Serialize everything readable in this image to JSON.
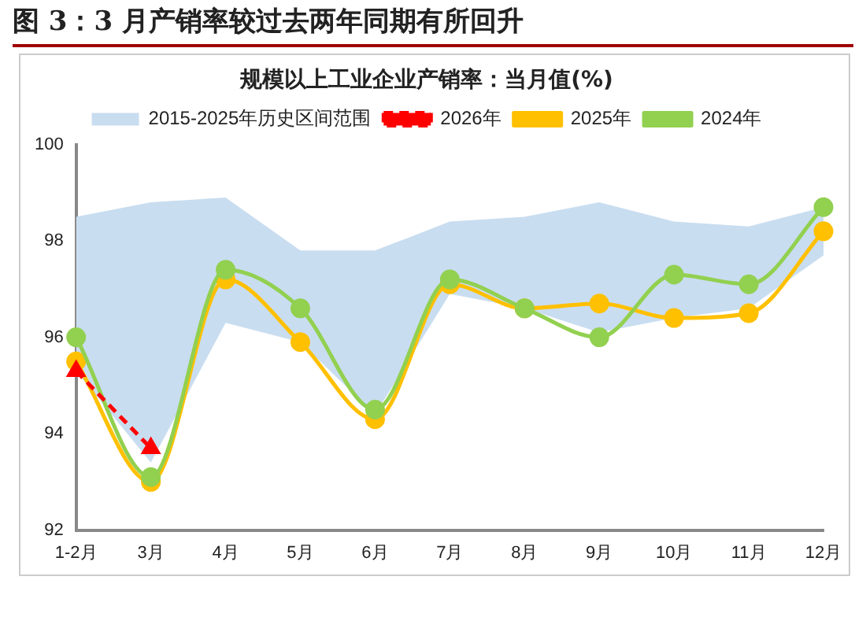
{
  "chart_data": {
    "type": "line",
    "title": "图 3：3 月产销率较过去两年同期有所回升",
    "subtitle": "规模以上工业企业产销率：当月值(%)",
    "categories": [
      "1-2月",
      "3月",
      "4月",
      "5月",
      "6月",
      "7月",
      "8月",
      "9月",
      "10月",
      "11月",
      "12月"
    ],
    "series": [
      {
        "name": "2015-2025年历史区间范围",
        "type": "area",
        "color": "#c9ddf0",
        "values": [
          null,
          null,
          null,
          null,
          null,
          null,
          null,
          null,
          null,
          null,
          null
        ],
        "upper": [
          98.5,
          98.8,
          98.9,
          97.8,
          97.8,
          98.4,
          98.5,
          98.8,
          98.4,
          98.3,
          98.7
        ],
        "lower": [
          95.3,
          93.4,
          96.3,
          95.9,
          94.4,
          96.9,
          96.6,
          96.1,
          96.4,
          96.6,
          97.7
        ]
      },
      {
        "name": "2026年",
        "color": "#ff0000",
        "marker": "triangle",
        "line_style": "dashed",
        "values": [
          95.3,
          93.7,
          null,
          null,
          null,
          null,
          null,
          null,
          null,
          null,
          null
        ]
      },
      {
        "name": "2025年",
        "color": "#ffc000",
        "marker": "circle",
        "values": [
          95.5,
          93.0,
          97.2,
          95.9,
          94.3,
          97.1,
          96.6,
          96.7,
          96.4,
          96.5,
          98.2
        ]
      },
      {
        "name": "2024年",
        "color": "#92d050",
        "marker": "circle",
        "values": [
          96.0,
          93.1,
          97.4,
          96.6,
          94.5,
          97.2,
          96.6,
          96.0,
          97.3,
          97.1,
          98.7
        ]
      }
    ],
    "ylim": [
      92,
      100
    ],
    "yticks": [
      92,
      94,
      96,
      98,
      100
    ],
    "grid": false,
    "legend": "top"
  }
}
